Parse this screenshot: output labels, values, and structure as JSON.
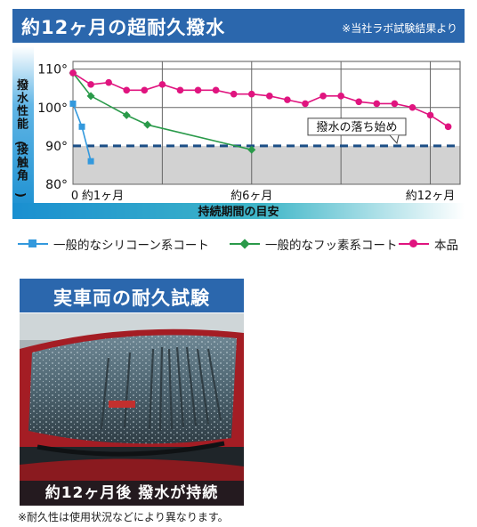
{
  "header": {
    "title": "約12ヶ月の超耐久撥水",
    "note": "※当社ラボ試験結果より"
  },
  "chart_data": {
    "type": "line",
    "ylabel": "撥水性能(接触角)",
    "xlabel": "持続期間の目安",
    "y_ticks": [
      {
        "value": 110,
        "label": "110°"
      },
      {
        "value": 100,
        "label": "100°"
      },
      {
        "value": 90,
        "label": "90°"
      },
      {
        "value": 80,
        "label": "80°"
      }
    ],
    "x_ticks": [
      {
        "value": 0,
        "label": "0"
      },
      {
        "value": 1,
        "label": "約1ヶ月"
      },
      {
        "value": 6,
        "label": "約6ヶ月"
      },
      {
        "value": 12,
        "label": "約12ヶ月"
      }
    ],
    "ylim": [
      80,
      112
    ],
    "xlim": [
      0,
      13
    ],
    "grid": true,
    "threshold": {
      "value": 90,
      "label": "撥水の落ち始め"
    },
    "legend_position": "bottom",
    "series": [
      {
        "name": "一般的なシリコーン系コート",
        "color": "#3399dd",
        "marker": "square",
        "x": [
          0,
          0.3,
          0.6
        ],
        "y": [
          101,
          95,
          86
        ]
      },
      {
        "name": "一般的なフッ素系コート",
        "color": "#2a9a4a",
        "marker": "diamond",
        "x": [
          0,
          0.6,
          1.8,
          2.5,
          6
        ],
        "y": [
          109,
          103,
          98,
          95.5,
          89
        ]
      },
      {
        "name": "本品",
        "color": "#e0147f",
        "marker": "circle",
        "x": [
          0,
          0.6,
          1.2,
          1.8,
          2.4,
          3.0,
          3.6,
          4.2,
          4.8,
          5.4,
          6.0,
          6.6,
          7.2,
          7.8,
          8.4,
          9.0,
          9.6,
          10.2,
          10.8,
          11.4,
          12.0,
          12.6
        ],
        "y": [
          109,
          106,
          106.5,
          104.5,
          104.5,
          106,
          104.5,
          104.5,
          104.5,
          103.5,
          103.5,
          103,
          102,
          101,
          103,
          103,
          101.5,
          101,
          101,
          100,
          98,
          95
        ]
      }
    ]
  },
  "photo": {
    "title": "実車両の耐久試験",
    "caption": "約12ヶ月後 撥水が持続"
  },
  "footnote": "※耐久性は使用状況などにより異なります。"
}
